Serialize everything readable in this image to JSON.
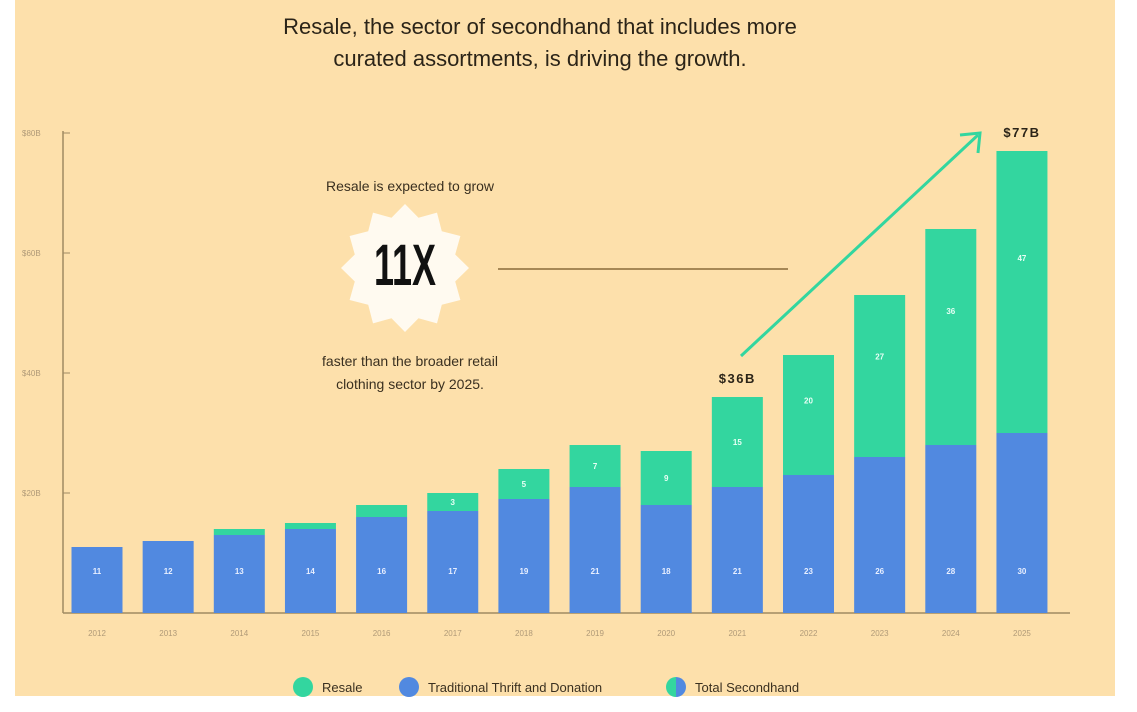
{
  "colors": {
    "background": "#fde0ab",
    "resale": "#33d69f",
    "traditional": "#5189e0",
    "axis": "#a08a63",
    "arrow": "#33d69f"
  },
  "chart_data": {
    "type": "bar",
    "stacked": true,
    "title": "Resale, the sector of secondhand that includes more curated assortments, is driving the growth.",
    "title_lines": [
      "Resale, the sector of secondhand that includes more",
      "curated assortments, is driving the growth."
    ],
    "categories": [
      "2012",
      "2013",
      "2014",
      "2015",
      "2016",
      "2017",
      "2018",
      "2019",
      "2020",
      "2021",
      "2022",
      "2023",
      "2024",
      "2025"
    ],
    "series": [
      {
        "name": "Traditional Thrift and Donation",
        "values": [
          11,
          12,
          13,
          14,
          16,
          17,
          19,
          21,
          18,
          21,
          23,
          26,
          28,
          30
        ],
        "labels": [
          "11",
          "12",
          "13",
          "14",
          "16",
          "17",
          "19",
          "21",
          "18",
          "21",
          "23",
          "26",
          "28",
          "30"
        ]
      },
      {
        "name": "Resale",
        "values": [
          0,
          0,
          1,
          1,
          2,
          3,
          5,
          7,
          9,
          15,
          20,
          27,
          36,
          47
        ],
        "labels": [
          "",
          "",
          "",
          "",
          "",
          "3",
          "5",
          "7",
          "9",
          "15",
          "20",
          "27",
          "36",
          "47"
        ]
      }
    ],
    "yticks": [
      "$20B",
      "$40B",
      "$60B",
      "$80B"
    ],
    "ytick_values": [
      20,
      40,
      60,
      80
    ],
    "ylim": [
      0,
      80
    ],
    "total_labels": [
      {
        "category": "2021",
        "text": "$36B"
      },
      {
        "category": "2025",
        "text": "$77B"
      }
    ],
    "legend": {
      "placement": "bottom",
      "items": [
        "Resale",
        "Traditional Thrift and Donation",
        "Total Secondhand"
      ]
    },
    "grid": false
  },
  "callout": {
    "line1": "Resale is expected to grow",
    "big": "11X",
    "line2": "faster than the broader retail",
    "line3": "clothing sector by 2025."
  }
}
